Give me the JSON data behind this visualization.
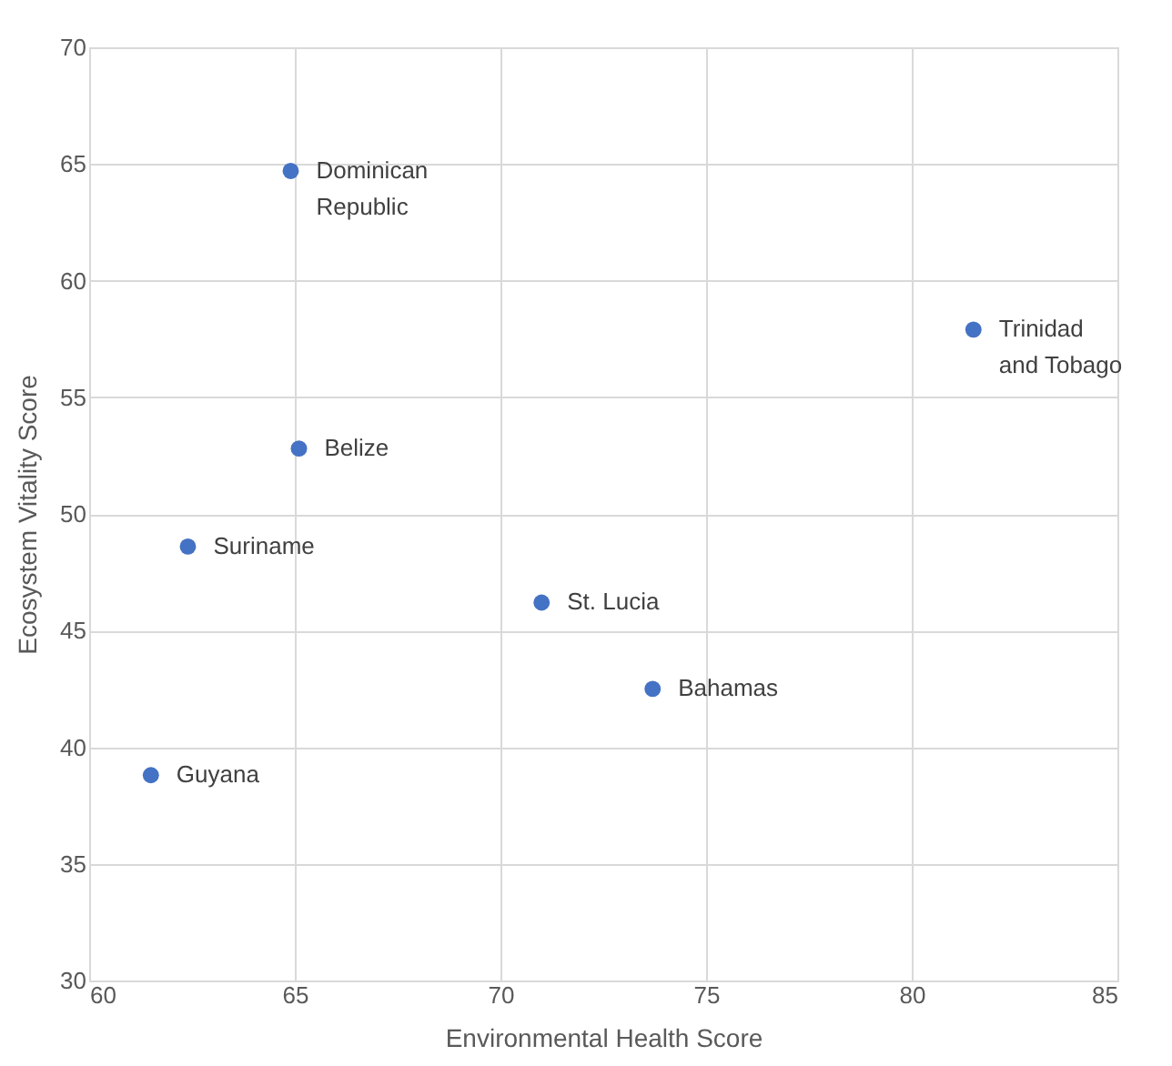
{
  "chart_data": {
    "type": "scatter",
    "xlabel": "Environmental Health  Score",
    "ylabel": "Ecosystem Vitality Score",
    "x": [
      64.9,
      81.5,
      65.1,
      62.4,
      71.0,
      73.7,
      61.5
    ],
    "series": [
      {
        "color": "#4472c4",
        "values": [
          64.7,
          57.9,
          52.8,
          48.6,
          46.2,
          42.5,
          38.8
        ]
      }
    ],
    "xlim": [
      60,
      85
    ],
    "xticks": [
      60,
      65,
      70,
      75,
      80,
      85
    ],
    "ylim": [
      30,
      70
    ],
    "yticks": [
      30,
      35,
      40,
      45,
      50,
      55,
      60,
      65,
      70
    ],
    "grid": true,
    "marker": "circle",
    "annotations": [
      {
        "text": "Dominican Republic",
        "x": 64.9,
        "y": 64.7
      },
      {
        "text": "Trinidad and Tobago",
        "x": 81.5,
        "y": 57.9
      },
      {
        "text": "Belize",
        "x": 65.1,
        "y": 52.8
      },
      {
        "text": "Suriname",
        "x": 62.4,
        "y": 48.6
      },
      {
        "text": "St. Lucia",
        "x": 71.0,
        "y": 46.2
      },
      {
        "text": "Bahamas",
        "x": 73.7,
        "y": 42.5
      },
      {
        "text": "Guyana",
        "x": 61.5,
        "y": 38.8
      }
    ]
  }
}
